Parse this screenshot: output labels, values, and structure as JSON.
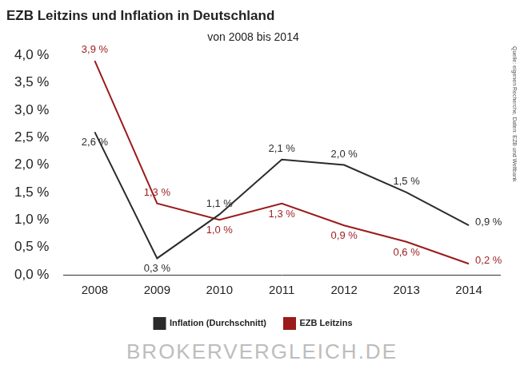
{
  "chart_data": {
    "type": "line",
    "title": "EZB Leitzins und Inflation in Deutschland",
    "subtitle": "von 2008 bis 2014",
    "source": "Quelle: eigenen Recherche, Daten: EZB und Weltbank",
    "logo": "BROKERVERGLEICH.DE",
    "categories": [
      "2008",
      "2009",
      "2010",
      "2011",
      "2012",
      "2013",
      "2014"
    ],
    "series": [
      {
        "name": "Inflation (Durchschnitt)",
        "color": "#2b2b2b",
        "values": [
          2.6,
          0.3,
          1.1,
          2.1,
          2.0,
          1.5,
          0.9
        ],
        "value_labels": [
          "2,6 %",
          "0,3 %",
          "1,1 %",
          "2,1 %",
          "2,0 %",
          "1,5 %",
          "0,9 %"
        ]
      },
      {
        "name": "EZB Leitzins",
        "color": "#9b1b1b",
        "values": [
          3.9,
          1.3,
          1.0,
          1.3,
          0.9,
          0.6,
          0.2
        ],
        "value_labels": [
          "3,9 %",
          "1,3 %",
          "1,0 %",
          "1,3 %",
          "0,9 %",
          "0,6 %",
          "0,2 %"
        ]
      }
    ],
    "ylim": [
      0,
      4
    ],
    "yticks": [
      {
        "value": 0,
        "label": "0,0 %"
      },
      {
        "value": 0.5,
        "label": "0,5 %"
      },
      {
        "value": 1,
        "label": "1,0 %"
      },
      {
        "value": 1.5,
        "label": "1,5 %"
      },
      {
        "value": 2,
        "label": "2,0 %"
      },
      {
        "value": 2.5,
        "label": "2,5 %"
      },
      {
        "value": 3,
        "label": "3,0 %"
      },
      {
        "value": 3.5,
        "label": "3,5 %"
      },
      {
        "value": 4,
        "label": "4,0 %"
      }
    ],
    "grid": false,
    "legend": "bottom",
    "data_labels": true
  }
}
